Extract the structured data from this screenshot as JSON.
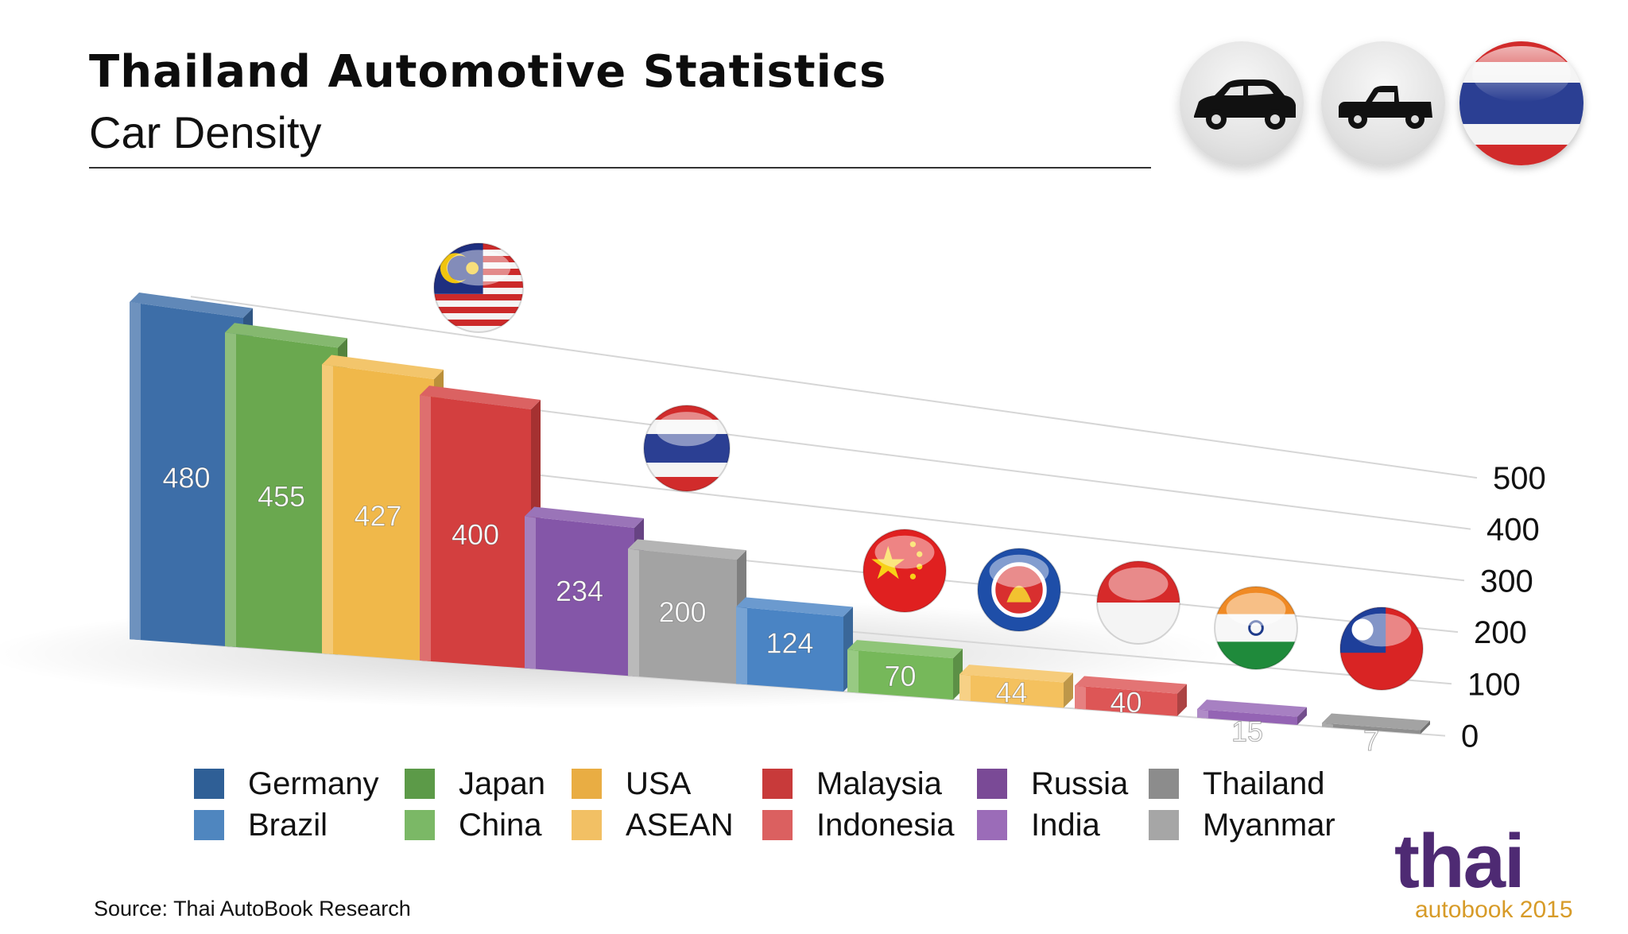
{
  "header": {
    "title": "Thailand Automotive Statistics",
    "subtitle": "Car Density"
  },
  "icons": {
    "sedan": "sedan-car-icon",
    "pickup": "pickup-truck-icon",
    "flag": "thailand-flag-icon"
  },
  "chart_data": {
    "type": "bar",
    "title": "",
    "xlabel": "",
    "ylabel": "",
    "ylim": [
      0,
      500
    ],
    "yticks": [
      "500",
      "400",
      "300",
      "200",
      "100",
      "0"
    ],
    "grid": true,
    "style": "3d",
    "categories": [
      "Germany",
      "Japan",
      "USA",
      "Malaysia",
      "Russia",
      "Thailand",
      "Brazil",
      "China",
      "ASEAN",
      "Indonesia",
      "India",
      "Myanmar"
    ],
    "values": [
      480,
      455,
      427,
      400,
      234,
      200,
      124,
      70,
      44,
      40,
      15,
      7
    ],
    "value_labels": [
      "480",
      "455",
      "427",
      "400",
      "234",
      "200",
      "124",
      "70",
      "44",
      "40",
      "15",
      "7"
    ],
    "colors": [
      "#3d6ea8",
      "#6aa84f",
      "#f0b84a",
      "#d33f3f",
      "#8456a8",
      "#a3a3a3",
      "#4a84c4",
      "#76b85a",
      "#f4c15e",
      "#dd5656",
      "#9464b4",
      "#8f8f8f"
    ],
    "flags": [
      "malaysia",
      "thailand",
      "china",
      "asean",
      "indonesia",
      "india",
      "myanmar"
    ]
  },
  "legend": [
    {
      "label": "Germany",
      "color": "#2f5f96"
    },
    {
      "label": "Japan",
      "color": "#5c9a48"
    },
    {
      "label": "USA",
      "color": "#e9ad43"
    },
    {
      "label": "Malaysia",
      "color": "#c83a3a"
    },
    {
      "label": "Russia",
      "color": "#7a4a96"
    },
    {
      "label": "Thailand",
      "color": "#8c8c8c"
    },
    {
      "label": "Brazil",
      "color": "#4f86bf"
    },
    {
      "label": "China",
      "color": "#7bb866"
    },
    {
      "label": "ASEAN",
      "color": "#f2c064"
    },
    {
      "label": "Indonesia",
      "color": "#db6060"
    },
    {
      "label": "India",
      "color": "#9b6cb8"
    },
    {
      "label": "Myanmar",
      "color": "#a6a6a6"
    }
  ],
  "footer": {
    "source": "Source:  Thai AutoBook Research",
    "logo_word": "thai",
    "logo_sub": "autobook 2015"
  }
}
